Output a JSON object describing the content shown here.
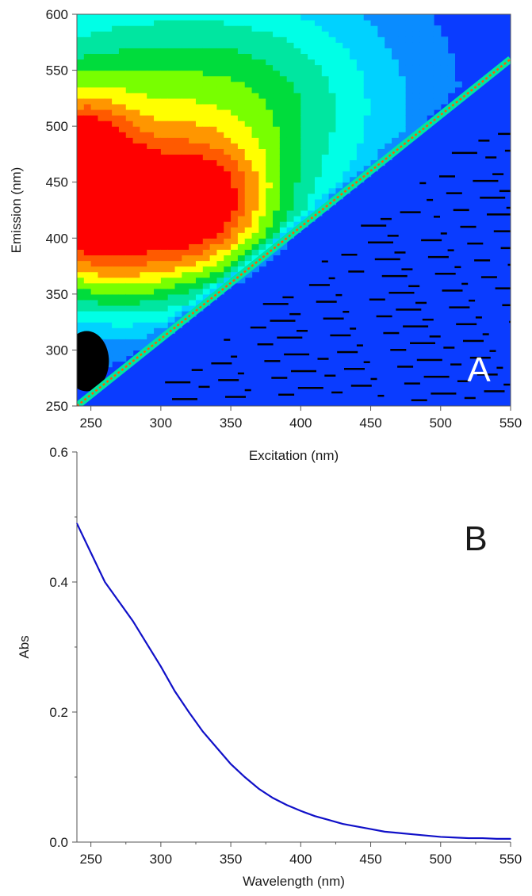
{
  "chart_data": [
    {
      "type": "heatmap",
      "panel_label": "A",
      "xlabel": "Excitation (nm)",
      "ylabel": "Emission (nm)",
      "xlim": [
        240,
        550
      ],
      "ylim": [
        250,
        600
      ],
      "xticks": [
        "250",
        "300",
        "350",
        "400",
        "450",
        "500",
        "550"
      ],
      "yticks": [
        "250",
        "300",
        "350",
        "400",
        "450",
        "500",
        "550",
        "600"
      ],
      "colormap": [
        "#000000",
        "#0000c8",
        "#0a3cff",
        "#0a8cff",
        "#00d2ff",
        "#00ffe6",
        "#00e6a0",
        "#00dc3c",
        "#78ff00",
        "#ffff00",
        "#ff9600",
        "#ff5a00",
        "#ff0000"
      ],
      "peaks": [
        {
          "excitation": 240,
          "emission": 450,
          "level": "max"
        },
        {
          "excitation": 325,
          "emission": 425,
          "level": "high"
        }
      ],
      "rayleigh_scatter": {
        "excitation": [
          240,
          550
        ],
        "emission": [
          250,
          560
        ]
      }
    },
    {
      "type": "line",
      "panel_label": "B",
      "xlabel": "Wavelength (nm)",
      "ylabel": "Abs",
      "xlim": [
        240,
        550
      ],
      "ylim": [
        0.0,
        0.6
      ],
      "xticks": [
        "250",
        "300",
        "350",
        "400",
        "450",
        "500",
        "550"
      ],
      "yticks": [
        "0.0",
        "0.2",
        "0.4",
        "0.6"
      ],
      "line_color": "#1010c8",
      "series": [
        {
          "x": [
            240,
            250,
            260,
            270,
            280,
            290,
            300,
            310,
            320,
            330,
            340,
            350,
            360,
            370,
            380,
            390,
            400,
            410,
            420,
            430,
            440,
            450,
            460,
            470,
            480,
            490,
            500,
            510,
            520,
            530,
            540,
            550
          ],
          "values": [
            0.49,
            0.445,
            0.4,
            0.37,
            0.34,
            0.305,
            0.27,
            0.232,
            0.2,
            0.17,
            0.145,
            0.12,
            0.1,
            0.082,
            0.068,
            0.057,
            0.048,
            0.04,
            0.034,
            0.028,
            0.024,
            0.02,
            0.016,
            0.014,
            0.012,
            0.01,
            0.008,
            0.007,
            0.006,
            0.006,
            0.005,
            0.005
          ]
        }
      ]
    }
  ]
}
